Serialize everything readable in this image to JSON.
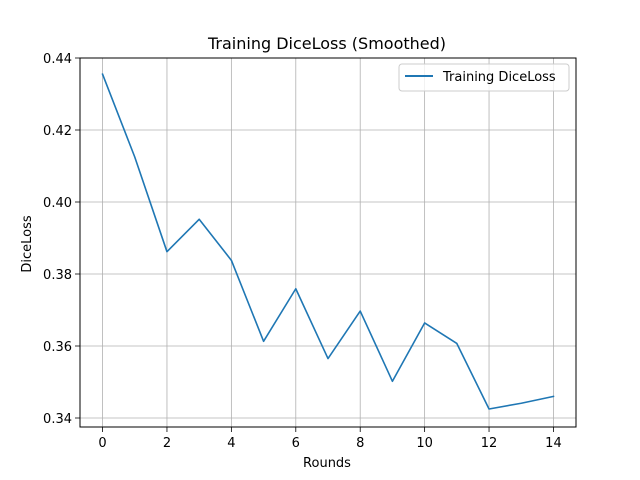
{
  "chart_data": {
    "type": "line",
    "title": "Training DiceLoss (Smoothed)",
    "xlabel": "Rounds",
    "ylabel": "DiceLoss",
    "xlim": [
      -0.7,
      14.7
    ],
    "ylim": [
      0.3375,
      0.44
    ],
    "xticks": [
      0,
      2,
      4,
      6,
      8,
      10,
      12,
      14
    ],
    "yticks": [
      0.34,
      0.36,
      0.38,
      0.4,
      0.42,
      0.44
    ],
    "ytick_labels": [
      "0.34",
      "0.36",
      "0.38",
      "0.40",
      "0.42",
      "0.44"
    ],
    "grid": true,
    "legend_position": "top-right",
    "series": [
      {
        "name": "Training DiceLoss",
        "color": "#1f77b4",
        "x": [
          0,
          1,
          2,
          3,
          4,
          5,
          6,
          7,
          8,
          9,
          10,
          11,
          12,
          13,
          14
        ],
        "y": [
          0.4355,
          0.4125,
          0.3862,
          0.3952,
          0.3838,
          0.3613,
          0.3759,
          0.3565,
          0.3697,
          0.3502,
          0.3664,
          0.3607,
          0.3425,
          0.3441,
          0.346
        ]
      }
    ]
  }
}
